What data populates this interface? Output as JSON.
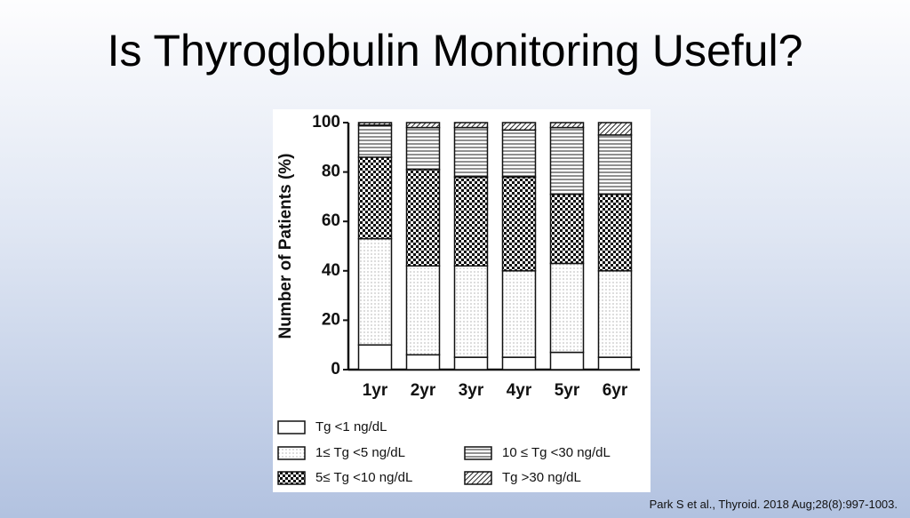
{
  "slide": {
    "title": "Is Thyroglobulin Monitoring Useful?",
    "citation": "Park S et al., Thyroid. 2018 Aug;28(8):997-1003."
  },
  "chart_data": {
    "type": "stacked_bar",
    "y_label": "Number of Patients (%)",
    "categories": [
      "1yr",
      "2yr",
      "3yr",
      "4yr",
      "5yr",
      "6yr"
    ],
    "series": [
      {
        "name": "Tg <1 ng/dL",
        "color": "#ffffff",
        "pattern": "none",
        "values": [
          10,
          6,
          5,
          5,
          7,
          5
        ]
      },
      {
        "name": "1≤ Tg <5 ng/dL",
        "color": "#ffffff",
        "pattern": "dots",
        "values": [
          43,
          36,
          37,
          35,
          36,
          35
        ]
      },
      {
        "name": "5≤ Tg <10 ng/dL",
        "color": "#111111",
        "pattern": "checker",
        "values": [
          33,
          39,
          36,
          38,
          28,
          31
        ]
      },
      {
        "name": "10 ≤ Tg <30 ng/dL",
        "color": "#ffffff",
        "pattern": "hlines",
        "values": [
          13,
          17,
          20,
          19,
          27,
          24
        ]
      },
      {
        "name": "Tg >30 ng/dL",
        "color": "#888888",
        "pattern": "diag",
        "values": [
          1,
          2,
          2,
          3,
          2,
          5
        ]
      }
    ],
    "ylim": [
      0,
      100
    ],
    "yticks": [
      0,
      20,
      40,
      60,
      80,
      100
    ],
    "grid": false
  }
}
